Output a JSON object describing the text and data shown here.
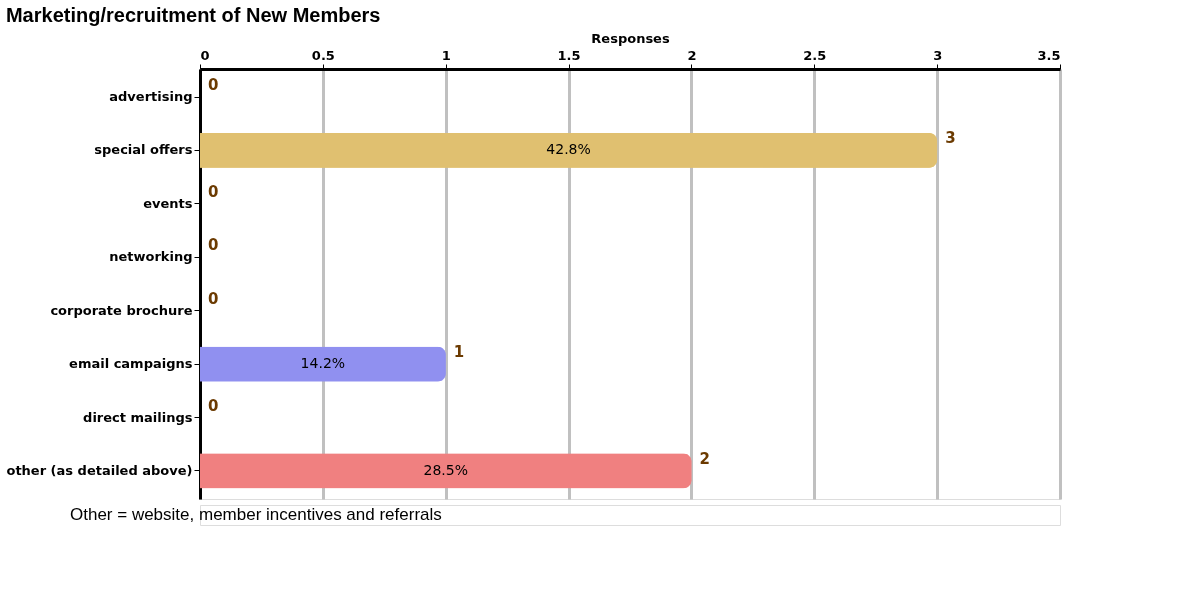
{
  "chart_data": {
    "type": "bar",
    "orientation": "horizontal",
    "title": "Marketing/recruitment of New Members",
    "xlabel": "Responses",
    "categories": [
      "advertising",
      "special offers",
      "events",
      "networking",
      "corporate brochure",
      "email campaigns",
      "direct mailings",
      "other (as detailed above)"
    ],
    "values": [
      0,
      3,
      0,
      0,
      0,
      1,
      0,
      2
    ],
    "colors": [
      "#d3d3d3",
      "#e0c070",
      "#a0f8f8",
      "#f890f0",
      "#f8f850",
      "#9090f0",
      "#70f070",
      "#f08080"
    ],
    "xlim": [
      0,
      3.5
    ],
    "xticks": [
      0,
      0.5,
      1,
      1.5,
      2,
      2.5,
      3,
      3.5
    ],
    "grid": "x",
    "data_labels": true,
    "annotations": [
      {
        "text": "42.8%",
        "x": 1.5,
        "y": "special offers"
      },
      {
        "text": "14.2%",
        "x": 0.5,
        "y": "email campaigns"
      },
      {
        "text": "28.5%",
        "x": 1,
        "y": "other (as detailed above)"
      },
      "Other = website, member incentives and referrals"
    ]
  }
}
